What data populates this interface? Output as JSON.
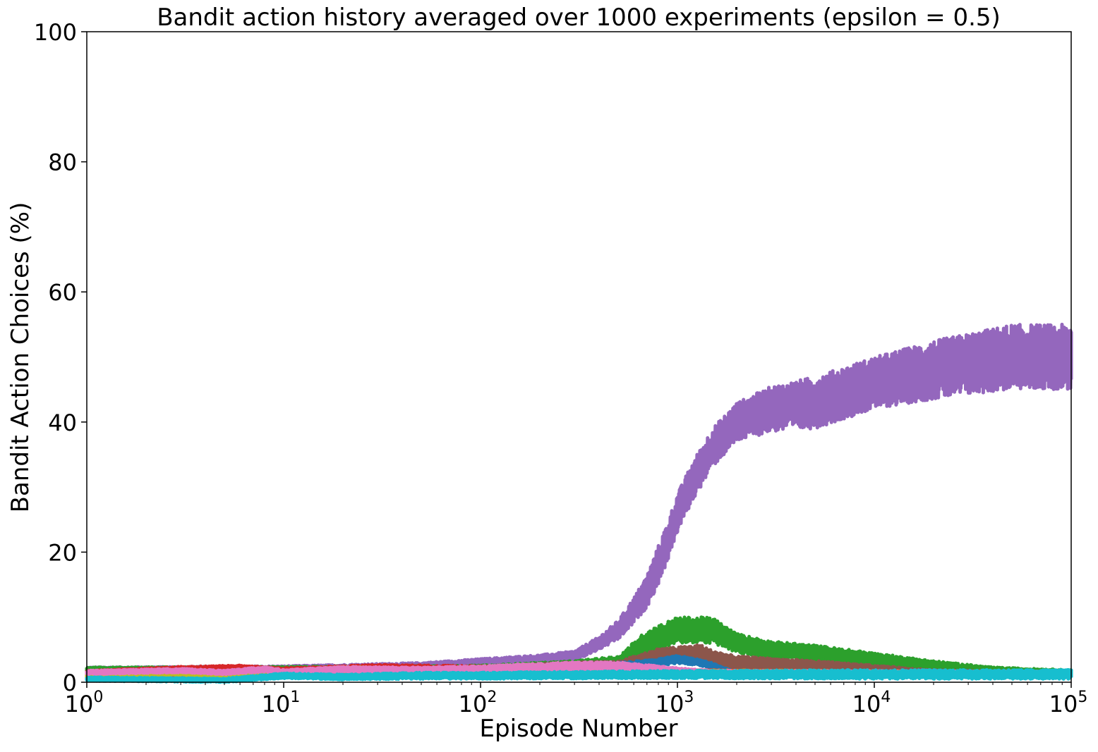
{
  "chart_data": {
    "type": "line",
    "title": "Bandit action history averaged over 1000 experiments (epsilon = 0.5)",
    "xlabel": "Episode Number",
    "ylabel": "Bandit Action Choices (%)",
    "xscale": "log",
    "xlim": [
      1,
      100000
    ],
    "ylim": [
      0,
      100
    ],
    "xticks": [
      {
        "base": "10",
        "exp": "0",
        "value": 1
      },
      {
        "base": "10",
        "exp": "1",
        "value": 10
      },
      {
        "base": "10",
        "exp": "2",
        "value": 100
      },
      {
        "base": "10",
        "exp": "3",
        "value": 1000
      },
      {
        "base": "10",
        "exp": "4",
        "value": 10000
      },
      {
        "base": "10",
        "exp": "5",
        "value": 100000
      }
    ],
    "yticks": [
      "0",
      "20",
      "40",
      "60",
      "80",
      "100"
    ],
    "grid": false,
    "legend": false,
    "series": [
      {
        "color": "#9467bd",
        "x": [
          1,
          10,
          50,
          100,
          200,
          300,
          400,
          500,
          600,
          700,
          800,
          900,
          1000,
          1200,
          1500,
          2000,
          3000,
          5000,
          10000,
          20000,
          50000,
          100000
        ],
        "y": [
          2,
          2,
          2.5,
          3,
          3.5,
          4,
          6,
          8,
          11,
          14,
          18,
          22,
          26,
          31,
          36,
          40,
          42,
          43,
          46,
          48,
          50,
          50
        ],
        "spread": [
          0.3,
          0.5,
          0.5,
          0.6,
          0.7,
          0.8,
          1,
          1.5,
          2,
          2.5,
          3,
          3,
          3,
          3,
          3,
          3,
          3.5,
          4,
          4,
          4.5,
          5,
          5
        ]
      },
      {
        "color": "#2ca02c",
        "x": [
          1,
          10,
          100,
          300,
          500,
          700,
          1000,
          1500,
          2000,
          3000,
          5000,
          10000,
          20000,
          40000,
          100000
        ],
        "y": [
          2,
          2,
          2,
          2.5,
          3,
          6,
          8,
          8,
          6,
          5,
          4.5,
          3.5,
          2.5,
          1.8,
          1.5
        ],
        "spread": [
          0.3,
          0.4,
          0.6,
          0.8,
          1,
          2,
          2,
          2,
          1.5,
          1.3,
          1.2,
          1,
          0.8,
          0.5,
          0.4
        ]
      },
      {
        "color": "#8c564b",
        "x": [
          1,
          10,
          100,
          300,
          500,
          800,
          1000,
          1300,
          1500,
          2000,
          5000,
          10000,
          20000,
          100000
        ],
        "y": [
          1.5,
          1.5,
          2,
          2.5,
          2.5,
          4,
          4.2,
          4.5,
          3.8,
          3,
          2.5,
          2,
          1.5,
          1.3
        ],
        "spread": [
          0.2,
          0.4,
          0.5,
          0.6,
          0.7,
          1.2,
          1.2,
          1.3,
          1.1,
          1,
          0.8,
          0.6,
          0.4,
          0.3
        ]
      },
      {
        "color": "#1f77b4",
        "x": [
          1,
          10,
          100,
          500,
          800,
          1000,
          1200,
          1500,
          1700,
          2000,
          100000
        ],
        "y": [
          1,
          1.5,
          2,
          2.5,
          3,
          3.5,
          3.2,
          2.6,
          2,
          1.5,
          1
        ],
        "spread": [
          0.2,
          0.3,
          0.4,
          0.5,
          0.6,
          0.6,
          0.5,
          0.4,
          0.3,
          0.2,
          0.2
        ]
      },
      {
        "color": "#d62728",
        "x": [
          1,
          3,
          6,
          10,
          30,
          100,
          1000,
          100000
        ],
        "y": [
          1.5,
          2,
          2.2,
          1.8,
          2.2,
          2,
          1.5,
          1.2
        ],
        "spread": [
          0.3,
          0.4,
          0.4,
          0.4,
          0.5,
          0.5,
          0.4,
          0.3
        ]
      },
      {
        "color": "#ff7f0e",
        "x": [
          1,
          10,
          100,
          1000,
          100000
        ],
        "y": [
          1,
          1.2,
          1.5,
          1.5,
          1.3
        ],
        "spread": [
          0.2,
          0.3,
          0.4,
          0.4,
          0.3
        ]
      },
      {
        "color": "#7f7f7f",
        "x": [
          1,
          10,
          100,
          1000,
          100000
        ],
        "y": [
          0.8,
          1,
          1.2,
          1.2,
          1.1
        ],
        "spread": [
          0.2,
          0.3,
          0.4,
          0.4,
          0.3
        ]
      },
      {
        "color": "#bcbd22",
        "x": [
          1,
          3,
          5,
          10,
          20,
          100,
          1000,
          100000
        ],
        "y": [
          1,
          1.5,
          0.8,
          1.2,
          2,
          1.5,
          1.3,
          1.2
        ],
        "spread": [
          0.3,
          0.4,
          0.3,
          0.3,
          0.4,
          0.4,
          0.4,
          0.3
        ]
      },
      {
        "color": "#e377c2",
        "x": [
          1,
          3,
          5,
          8,
          10,
          20,
          50,
          100,
          300,
          500,
          1000,
          1500,
          100000
        ],
        "y": [
          1.5,
          1.8,
          1.5,
          2,
          1.5,
          2,
          1.8,
          2,
          2.5,
          2.5,
          1.8,
          1.5,
          1.4
        ],
        "spread": [
          0.3,
          0.3,
          0.3,
          0.4,
          0.4,
          0.4,
          0.5,
          0.5,
          0.6,
          0.6,
          0.4,
          0.3,
          0.3
        ]
      },
      {
        "color": "#17becf",
        "x": [
          1,
          5,
          10,
          20,
          50,
          100,
          1000,
          10000,
          100000
        ],
        "y": [
          0.5,
          0.3,
          1,
          0.8,
          1,
          1,
          1.2,
          1.2,
          1.2
        ],
        "spread": [
          0.3,
          0.3,
          0.4,
          0.4,
          0.5,
          0.5,
          0.6,
          0.7,
          0.7
        ]
      }
    ]
  }
}
